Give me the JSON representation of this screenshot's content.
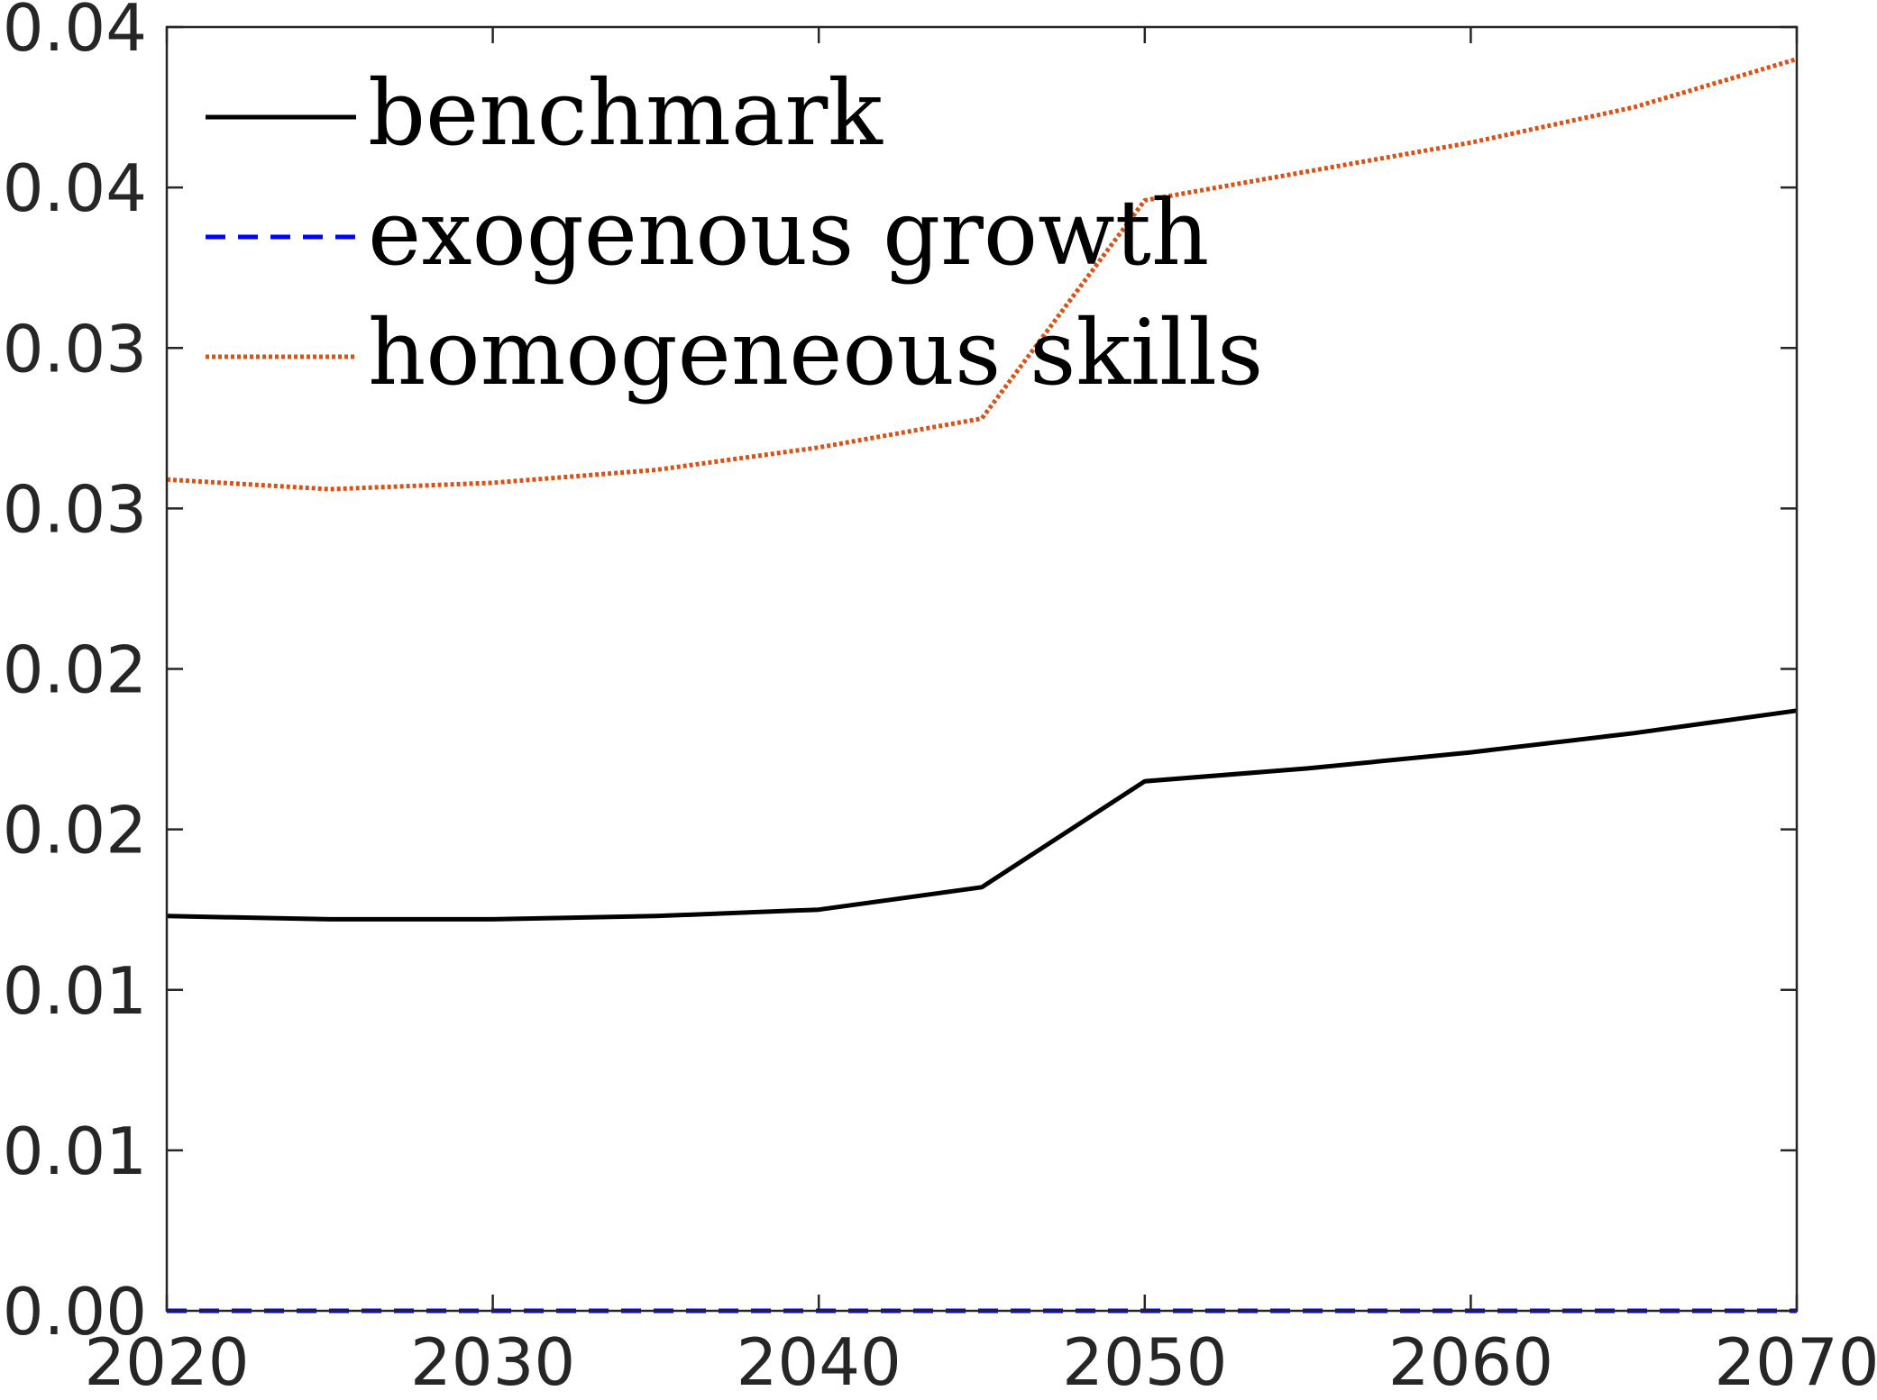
{
  "chart_data": {
    "type": "line",
    "title": "",
    "xlabel": "",
    "ylabel": "",
    "xlim": [
      2020,
      2070
    ],
    "ylim": [
      0,
      0.04
    ],
    "x_ticks": [
      2020,
      2030,
      2040,
      2050,
      2060,
      2070
    ],
    "x_tick_labels": [
      "2020",
      "2030",
      "2040",
      "2050",
      "2060",
      "2070"
    ],
    "y_ticks": [
      0,
      0.005,
      0.01,
      0.015,
      0.02,
      0.025,
      0.03,
      0.035,
      0.04
    ],
    "y_tick_labels": [
      "0.00",
      "0.01",
      "0.01",
      "0.02",
      "0.02",
      "0.03",
      "0.03",
      "0.04",
      "0.04"
    ],
    "grid": false,
    "legend_position": "top-left",
    "x": [
      2020,
      2025,
      2030,
      2035,
      2040,
      2045,
      2050,
      2055,
      2060,
      2065,
      2070
    ],
    "series": [
      {
        "name": "benchmark",
        "color": "#000000",
        "style": "solid",
        "values": [
          0.0123,
          0.0122,
          0.0122,
          0.0123,
          0.0125,
          0.0132,
          0.0165,
          0.0169,
          0.0174,
          0.018,
          0.0187
        ]
      },
      {
        "name": "exogenous growth",
        "color": "#0000ff",
        "style": "dashed",
        "values": [
          0,
          0,
          0,
          0,
          0,
          0,
          0,
          0,
          0,
          0,
          0
        ]
      },
      {
        "name": "homogeneous skills",
        "color": "#d95319",
        "style": "dotted",
        "values": [
          0.0259,
          0.0256,
          0.0258,
          0.0262,
          0.0269,
          0.0278,
          0.0346,
          0.0355,
          0.0364,
          0.0375,
          0.039
        ]
      }
    ]
  }
}
